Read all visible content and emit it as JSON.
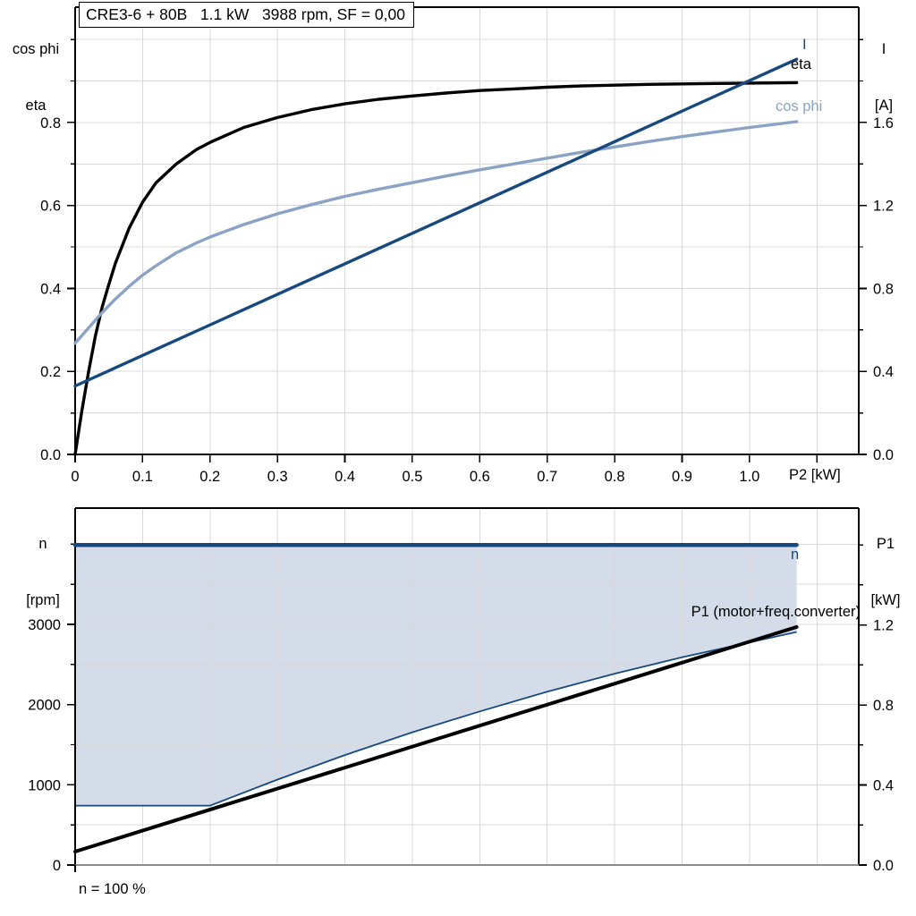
{
  "title": "CRE3-6 + 80B   1.1 kW   3988 rpm, SF = 0,00",
  "footnote": "n = 100 %",
  "axis_corner_labels": {
    "top_left_line1": "cos phi",
    "top_left_line2": "eta",
    "top_right_line1": "I",
    "top_right_line2": "[A]",
    "bottom_left_line1": "n",
    "bottom_left_line2": "[rpm]",
    "bottom_right_line1": "P1",
    "bottom_right_line2": "[kW]",
    "x_axis": "P2 [kW]"
  },
  "curve_labels": {
    "current": "I",
    "eta": "eta",
    "cos_phi": "cos phi",
    "speed": "n",
    "p1": "P1 (motor+freq.converter)"
  },
  "colors": {
    "navy": "#17497E",
    "light_blue": "#8AA3C4",
    "black": "#000000",
    "area_fill": "#D3DCE8",
    "grid": "#D9D9D9",
    "axis_gray": "#8C8C8C"
  },
  "chart_data": [
    {
      "type": "line",
      "title": "CRE3-6 + 80B   1.1 kW   3988 rpm, SF = 0,00",
      "x": {
        "label": "P2 [kW]",
        "min": 0,
        "max": 1.162,
        "grid_step": 0.1,
        "grid_to": 1.1,
        "ticks": [
          [
            "0",
            0
          ],
          [
            "0.1",
            0.1
          ],
          [
            "0.2",
            0.2
          ],
          [
            "0.3",
            0.3
          ],
          [
            "0.4",
            0.4
          ],
          [
            "0.5",
            0.5
          ],
          [
            "0.6",
            0.6
          ],
          [
            "0.7",
            0.7
          ],
          [
            "0.8",
            0.8
          ],
          [
            "0.9",
            0.9
          ],
          [
            "1.0",
            1.0
          ],
          [
            "",
            1.1
          ]
        ]
      },
      "left": {
        "labels": [
          "cos phi",
          "eta"
        ],
        "min": 0,
        "max": 1.078,
        "ticks": [
          [
            "0.0",
            0
          ],
          [
            "0.2",
            0.2
          ],
          [
            "0.4",
            0.4
          ],
          [
            "0.6",
            0.6
          ],
          [
            "0.8",
            0.8
          ]
        ],
        "minor_step": 0.1,
        "minor_to": 1.0,
        "grid_step": 0.1,
        "grid_to": 1.0
      },
      "right": {
        "labels": [
          "I",
          "[A]"
        ],
        "min": 0,
        "max": 2.156,
        "ticks": [
          [
            "0.0",
            0
          ],
          [
            "0.4",
            0.4
          ],
          [
            "0.8",
            0.8
          ],
          [
            "1.2",
            1.2
          ],
          [
            "1.6",
            1.6
          ]
        ],
        "minor_step": 0.2,
        "minor_to": 2.0
      },
      "series": [
        {
          "name": "eta",
          "axis": "left",
          "color": "#000000",
          "width": 3.4,
          "points": [
            [
              0,
              0
            ],
            [
              0.01,
              0.105
            ],
            [
              0.02,
              0.2
            ],
            [
              0.03,
              0.285
            ],
            [
              0.04,
              0.355
            ],
            [
              0.05,
              0.41
            ],
            [
              0.06,
              0.462
            ],
            [
              0.08,
              0.545
            ],
            [
              0.1,
              0.608
            ],
            [
              0.12,
              0.655
            ],
            [
              0.15,
              0.7
            ],
            [
              0.18,
              0.735
            ],
            [
              0.2,
              0.752
            ],
            [
              0.25,
              0.788
            ],
            [
              0.3,
              0.812
            ],
            [
              0.35,
              0.831
            ],
            [
              0.4,
              0.845
            ],
            [
              0.45,
              0.856
            ],
            [
              0.5,
              0.864
            ],
            [
              0.55,
              0.871
            ],
            [
              0.6,
              0.877
            ],
            [
              0.65,
              0.881
            ],
            [
              0.7,
              0.885
            ],
            [
              0.75,
              0.888
            ],
            [
              0.8,
              0.89
            ],
            [
              0.85,
              0.892
            ],
            [
              0.9,
              0.893
            ],
            [
              0.95,
              0.894
            ],
            [
              1.0,
              0.895
            ],
            [
              1.07,
              0.896
            ]
          ]
        },
        {
          "name": "cos phi",
          "axis": "left",
          "color": "#8AA3C4",
          "width": 3.4,
          "points": [
            [
              0,
              0.268
            ],
            [
              0.02,
              0.305
            ],
            [
              0.04,
              0.342
            ],
            [
              0.06,
              0.375
            ],
            [
              0.08,
              0.405
            ],
            [
              0.1,
              0.432
            ],
            [
              0.12,
              0.455
            ],
            [
              0.15,
              0.486
            ],
            [
              0.18,
              0.51
            ],
            [
              0.2,
              0.524
            ],
            [
              0.25,
              0.554
            ],
            [
              0.3,
              0.58
            ],
            [
              0.35,
              0.602
            ],
            [
              0.4,
              0.622
            ],
            [
              0.45,
              0.639
            ],
            [
              0.5,
              0.655
            ],
            [
              0.55,
              0.671
            ],
            [
              0.6,
              0.686
            ],
            [
              0.65,
              0.7
            ],
            [
              0.7,
              0.714
            ],
            [
              0.75,
              0.728
            ],
            [
              0.8,
              0.741
            ],
            [
              0.85,
              0.754
            ],
            [
              0.9,
              0.766
            ],
            [
              0.95,
              0.777
            ],
            [
              1.0,
              0.788
            ],
            [
              1.07,
              0.802
            ]
          ]
        },
        {
          "name": "I",
          "axis": "right",
          "color": "#17497E",
          "width": 3.4,
          "points": [
            [
              0,
              0.33
            ],
            [
              1.07,
              1.905
            ]
          ]
        }
      ]
    },
    {
      "type": "line",
      "x": {
        "min": 0,
        "max": 1.162,
        "grid_step": 0.1,
        "grid_to": 1.1,
        "ticks": []
      },
      "left": {
        "labels": [
          "n",
          "[rpm]"
        ],
        "min": 0,
        "max": 4449,
        "ticks": [
          [
            "0",
            0
          ],
          [
            "1000",
            1000
          ],
          [
            "2000",
            2000
          ],
          [
            "3000",
            3000
          ]
        ],
        "minor_step": 500,
        "minor_to": 4000,
        "grid_step": 500,
        "grid_to": 4000
      },
      "right": {
        "labels": [
          "P1",
          "[kW]"
        ],
        "min": 0,
        "max": 1.784,
        "ticks": [
          [
            "0.0",
            0
          ],
          [
            "0.4",
            0.4
          ],
          [
            "0.8",
            0.8
          ],
          [
            "1.2",
            1.2
          ]
        ],
        "minor_step": 0.2,
        "minor_to": 1.6
      },
      "area": {
        "name": "speed-operating-range",
        "axis": "left",
        "fill": "#D3DCE8",
        "upper_value": 3988,
        "edge_color": "#17497E",
        "edge_width": 1.8,
        "lower_points": [
          [
            0,
            740
          ],
          [
            0.2,
            740
          ],
          [
            0.3,
            1065
          ],
          [
            0.4,
            1370
          ],
          [
            0.5,
            1655
          ],
          [
            0.6,
            1915
          ],
          [
            0.7,
            2160
          ],
          [
            0.8,
            2385
          ],
          [
            0.9,
            2590
          ],
          [
            1.0,
            2775
          ],
          [
            1.07,
            2905
          ]
        ]
      },
      "series": [
        {
          "name": "n",
          "axis": "left",
          "color": "#17497E",
          "width": 4.5,
          "points": [
            [
              0,
              3988
            ],
            [
              1.07,
              3988
            ]
          ]
        },
        {
          "name": "P1 (motor+freq.converter)",
          "axis": "right",
          "color": "#000000",
          "width": 4,
          "points": [
            [
              0,
              0.067
            ],
            [
              1.07,
              1.19
            ]
          ]
        }
      ],
      "frame_bottom_color": "#8C8C8C",
      "footnote": "n = 100 %"
    }
  ]
}
